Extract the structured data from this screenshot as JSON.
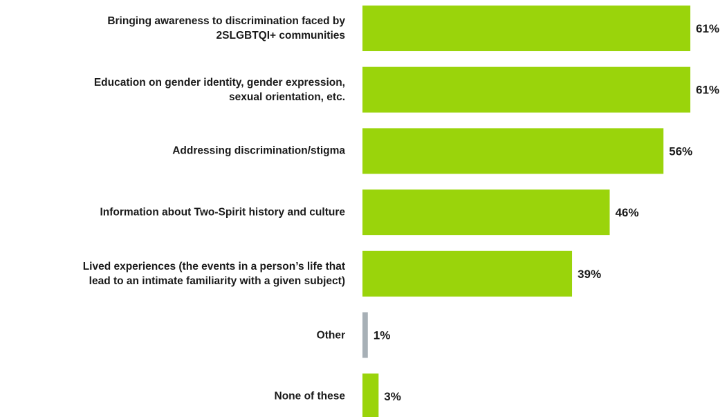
{
  "chart_data": {
    "type": "bar",
    "orientation": "horizontal",
    "categories": [
      [
        "Bringing awareness to discrimination faced by",
        "2SLGBTQI+ communities"
      ],
      [
        "Education on gender identity,  gender expression,",
        "sexual orientation, etc."
      ],
      [
        "Addressing discrimination/stigma"
      ],
      [
        "Information about Two-Spirit history and culture"
      ],
      [
        "Lived experiences (the  events in a person’s life that",
        "lead to an intimate familiarity with a given subject)"
      ],
      [
        "Other"
      ],
      [
        "None of these"
      ]
    ],
    "values": [
      61,
      61,
      56,
      46,
      39,
      1,
      3
    ],
    "value_labels": [
      "61%",
      "61%",
      "56%",
      "46%",
      "39%",
      "1%",
      "3%"
    ],
    "unit": "%",
    "bar_colors": [
      "#9ad40b",
      "#9ad40b",
      "#9ad40b",
      "#9ad40b",
      "#9ad40b",
      "#a7b0b6",
      "#9ad40b"
    ],
    "xlim": [
      0,
      61
    ],
    "grid": false,
    "legend": "none"
  }
}
